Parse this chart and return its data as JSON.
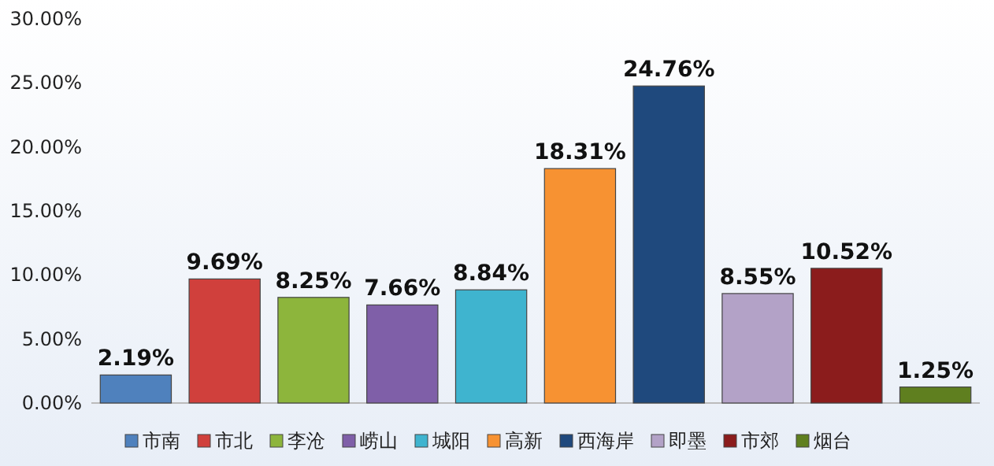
{
  "chart_data": {
    "type": "bar",
    "categories": [
      null
    ],
    "series": [
      {
        "name": "市南",
        "color": "#4f81bd",
        "values": [
          2.19
        ],
        "value_labels": [
          "2.19%"
        ]
      },
      {
        "name": "市北",
        "color": "#d0403c",
        "values": [
          9.69
        ],
        "value_labels": [
          "9.69%"
        ]
      },
      {
        "name": "李沧",
        "color": "#8db53c",
        "values": [
          8.25
        ],
        "value_labels": [
          "8.25%"
        ]
      },
      {
        "name": "崂山",
        "color": "#7f5fa8",
        "values": [
          7.66
        ],
        "value_labels": [
          "7.66%"
        ]
      },
      {
        "name": "城阳",
        "color": "#3fb4cf",
        "values": [
          8.84
        ],
        "value_labels": [
          "8.84%"
        ]
      },
      {
        "name": "高新",
        "color": "#f79232",
        "values": [
          18.31
        ],
        "value_labels": [
          "18.31%"
        ]
      },
      {
        "name": "西海岸",
        "color": "#1f497d",
        "values": [
          24.76
        ],
        "value_labels": [
          "24.76%"
        ]
      },
      {
        "name": "即墨",
        "color": "#b3a2c7",
        "values": [
          8.55
        ],
        "value_labels": [
          "8.55%"
        ]
      },
      {
        "name": "市郊",
        "color": "#8b1c1c",
        "values": [
          10.52
        ],
        "value_labels": [
          "10.52%"
        ]
      },
      {
        "name": "烟台",
        "color": "#5f7f1f",
        "values": [
          1.25
        ],
        "value_labels": [
          "1.25%"
        ]
      }
    ],
    "ylim": [
      0,
      30
    ],
    "yticks": [
      {
        "value": 0,
        "label": "0.00%"
      },
      {
        "value": 5,
        "label": "5.00%"
      },
      {
        "value": 10,
        "label": "10.00%"
      },
      {
        "value": 15,
        "label": "15.00%"
      },
      {
        "value": 20,
        "label": "20.00%"
      },
      {
        "value": 25,
        "label": "25.00%"
      },
      {
        "value": 30,
        "label": "30.00%"
      }
    ],
    "tick_labels": "y",
    "legend": "bottom"
  }
}
